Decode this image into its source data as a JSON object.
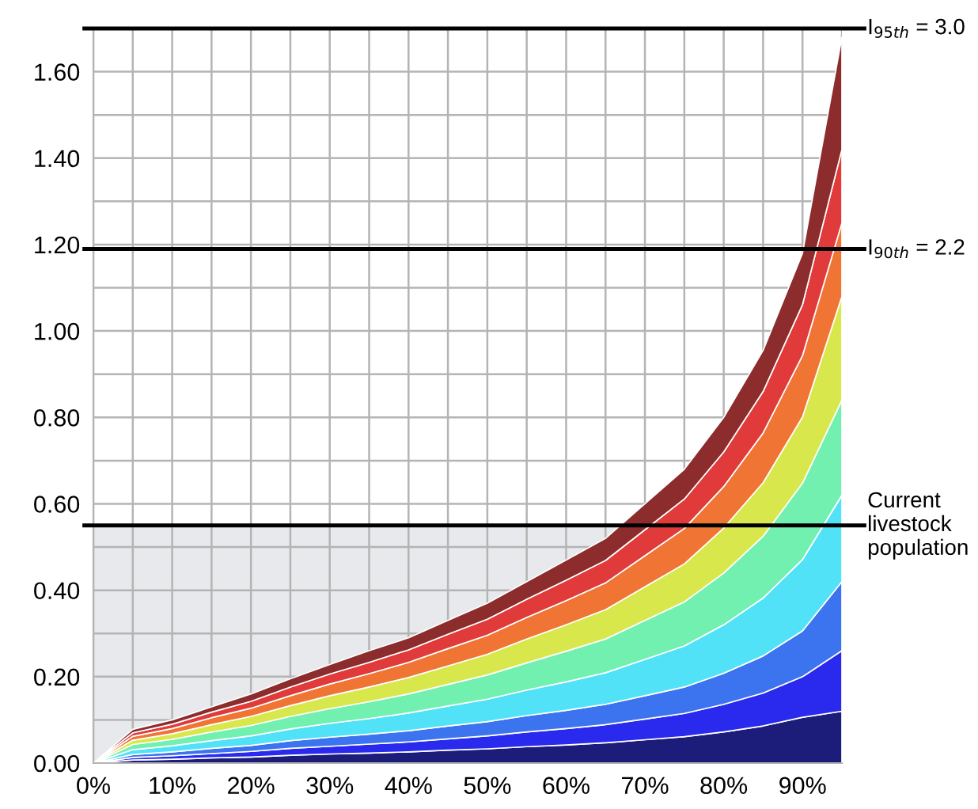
{
  "chart_data": {
    "type": "area",
    "stacked": true,
    "x": [
      0,
      5,
      10,
      15,
      20,
      25,
      30,
      35,
      40,
      45,
      50,
      55,
      60,
      65,
      70,
      75,
      80,
      85,
      90,
      95
    ],
    "xlim": [
      0,
      95
    ],
    "xticks": [
      {
        "value": 0,
        "label": "0%"
      },
      {
        "value": 5,
        "label": null
      },
      {
        "value": 10,
        "label": "10%"
      },
      {
        "value": 15,
        "label": null
      },
      {
        "value": 20,
        "label": "20%"
      },
      {
        "value": 25,
        "label": null
      },
      {
        "value": 30,
        "label": "30%"
      },
      {
        "value": 35,
        "label": null
      },
      {
        "value": 40,
        "label": "40%"
      },
      {
        "value": 45,
        "label": null
      },
      {
        "value": 50,
        "label": "50%"
      },
      {
        "value": 55,
        "label": null
      },
      {
        "value": 60,
        "label": "60%"
      },
      {
        "value": 65,
        "label": null
      },
      {
        "value": 70,
        "label": "70%"
      },
      {
        "value": 75,
        "label": null
      },
      {
        "value": 80,
        "label": "80%"
      },
      {
        "value": 85,
        "label": null
      },
      {
        "value": 90,
        "label": "90%"
      },
      {
        "value": 95,
        "label": null
      }
    ],
    "ylim": [
      0,
      1.7
    ],
    "yticks": [
      {
        "value": 0,
        "label": "0.00"
      },
      {
        "value": 0.1,
        "label": null
      },
      {
        "value": 0.2,
        "label": "0.20"
      },
      {
        "value": 0.3,
        "label": null
      },
      {
        "value": 0.4,
        "label": "0.40"
      },
      {
        "value": 0.5,
        "label": null
      },
      {
        "value": 0.6,
        "label": "0.60"
      },
      {
        "value": 0.7,
        "label": null
      },
      {
        "value": 0.8,
        "label": "0.80"
      },
      {
        "value": 0.9,
        "label": null
      },
      {
        "value": 1.0,
        "label": "1.00"
      },
      {
        "value": 1.1,
        "label": null
      },
      {
        "value": 1.2,
        "label": "1.20"
      },
      {
        "value": 1.3,
        "label": null
      },
      {
        "value": 1.4,
        "label": "1.40"
      },
      {
        "value": 1.5,
        "label": null
      },
      {
        "value": 1.6,
        "label": "1.60"
      },
      {
        "value": 1.7,
        "label": null
      }
    ],
    "grid": true,
    "bands": [
      {
        "axis": "y",
        "from": 0,
        "to": 0.55,
        "color": "#e8e9ec"
      }
    ],
    "ref_lines": [
      {
        "axis": "y",
        "value": 1.7,
        "color": "#000000"
      },
      {
        "axis": "y",
        "value": 1.19,
        "color": "#000000"
      },
      {
        "axis": "y",
        "value": 0.55,
        "color": "#000000"
      }
    ],
    "annotations": [
      "I$_{95th}$ = 3.0",
      "I$_{90th}$ = 2.2",
      "Current livestock population"
    ],
    "series": [
      {
        "color": "#1c1c7a",
        "values": [
          0,
          0.007,
          0.009,
          0.012,
          0.014,
          0.018,
          0.021,
          0.023,
          0.026,
          0.03,
          0.033,
          0.038,
          0.042,
          0.047,
          0.054,
          0.061,
          0.072,
          0.086,
          0.106,
          0.12
        ]
      },
      {
        "color": "#2a2aee",
        "values": [
          0,
          0.006,
          0.008,
          0.01,
          0.013,
          0.016,
          0.018,
          0.021,
          0.023,
          0.026,
          0.03,
          0.034,
          0.038,
          0.042,
          0.048,
          0.054,
          0.064,
          0.076,
          0.094,
          0.14
        ]
      },
      {
        "color": "#3c74f0",
        "values": [
          0,
          0.007,
          0.009,
          0.012,
          0.014,
          0.018,
          0.021,
          0.023,
          0.026,
          0.03,
          0.033,
          0.038,
          0.042,
          0.047,
          0.054,
          0.061,
          0.072,
          0.086,
          0.106,
          0.16
        ]
      },
      {
        "color": "#52e2f8",
        "values": [
          0,
          0.011,
          0.014,
          0.018,
          0.022,
          0.027,
          0.032,
          0.036,
          0.041,
          0.046,
          0.052,
          0.059,
          0.066,
          0.073,
          0.084,
          0.095,
          0.112,
          0.134,
          0.165,
          0.2
        ]
      },
      {
        "color": "#72f0b0",
        "values": [
          0,
          0.012,
          0.015,
          0.02,
          0.024,
          0.029,
          0.034,
          0.039,
          0.044,
          0.05,
          0.056,
          0.063,
          0.071,
          0.078,
          0.09,
          0.102,
          0.12,
          0.143,
          0.177,
          0.22
        ]
      },
      {
        "color": "#d8e84c",
        "values": [
          0,
          0.01,
          0.013,
          0.017,
          0.021,
          0.025,
          0.03,
          0.034,
          0.038,
          0.043,
          0.048,
          0.055,
          0.061,
          0.068,
          0.078,
          0.088,
          0.104,
          0.124,
          0.153,
          0.24
        ]
      },
      {
        "color": "#f07434",
        "values": [
          0,
          0.009,
          0.012,
          0.016,
          0.019,
          0.023,
          0.027,
          0.031,
          0.035,
          0.04,
          0.044,
          0.05,
          0.056,
          0.062,
          0.072,
          0.082,
          0.096,
          0.115,
          0.142,
          0.17
        ]
      },
      {
        "color": "#e03a3a",
        "values": [
          0,
          0.008,
          0.01,
          0.013,
          0.016,
          0.02,
          0.023,
          0.026,
          0.029,
          0.033,
          0.037,
          0.042,
          0.047,
          0.052,
          0.06,
          0.068,
          0.08,
          0.096,
          0.118,
          0.17
        ]
      },
      {
        "color": "#8c2c2c",
        "values": [
          0,
          0.008,
          0.01,
          0.012,
          0.017,
          0.019,
          0.022,
          0.027,
          0.028,
          0.032,
          0.037,
          0.041,
          0.047,
          0.051,
          0.06,
          0.069,
          0.08,
          0.095,
          0.119,
          0.26
        ]
      }
    ]
  }
}
